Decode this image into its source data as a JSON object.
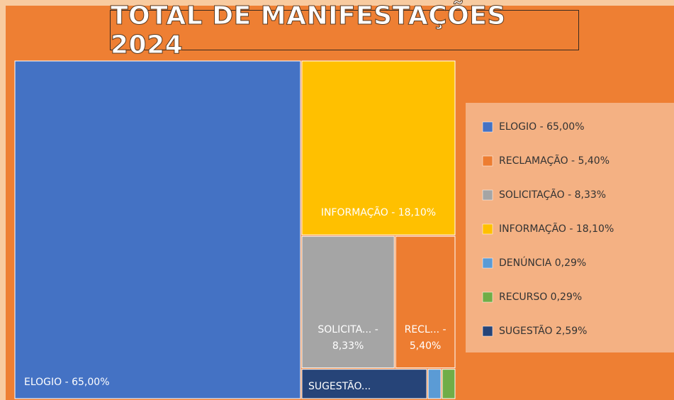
{
  "chart_data": {
    "type": "treemap",
    "title": "TOTAL DE MANIFESTAÇÕES 2024",
    "categories": [
      "ELOGIO - 65,00%",
      "RECLAMAÇÃO - 5,40%",
      "SOLICITAÇÃO - 8,33%",
      "INFORMAÇÃO - 18,10%",
      "DENÚNCIA 0,29%",
      "RECURSO 0,29%",
      "SUGESTÃO 2,59%"
    ],
    "values": [
      65.0,
      5.4,
      8.33,
      18.1,
      0.29,
      0.29,
      2.59
    ],
    "value_labels": [
      "ELOGIO - 65,00%",
      "RECL... - 5,40%",
      "SOLICITA... - 8,33%",
      "INFORMAÇÃO - 18,10%",
      null,
      null,
      "SUGESTÃO..."
    ],
    "colors": [
      "#4472c4",
      "#ed7d31",
      "#a5a5a5",
      "#ffc000",
      "#5b9bd5",
      "#70ad47",
      "#264478"
    ],
    "legend": "right"
  }
}
